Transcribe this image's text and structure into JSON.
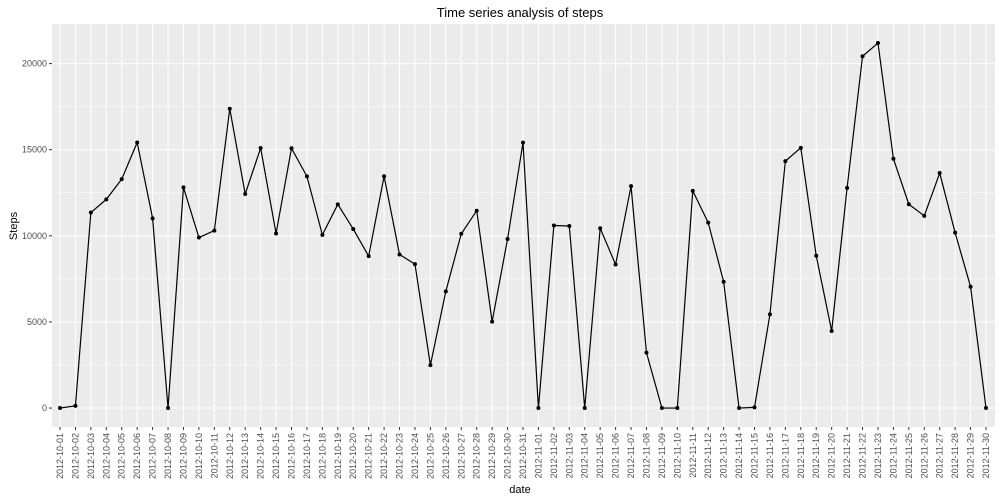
{
  "chart_data": {
    "type": "line",
    "title": "Time series analysis of steps",
    "xlabel": "date",
    "ylabel": "Steps",
    "ylim": [
      -1100,
      22300
    ],
    "yticks": [
      0,
      5000,
      10000,
      15000,
      20000
    ],
    "grid": true,
    "colors": {
      "panel": "#ebebeb",
      "grid": "#ffffff",
      "line": "#000000",
      "point": "#000000"
    },
    "series": [
      {
        "x": [
          "2012-10-01",
          "2012-10-02",
          "2012-10-03",
          "2012-10-04",
          "2012-10-05",
          "2012-10-06",
          "2012-10-07",
          "2012-10-08",
          "2012-10-09",
          "2012-10-10",
          "2012-10-11",
          "2012-10-12",
          "2012-10-13",
          "2012-10-14",
          "2012-10-15",
          "2012-10-16",
          "2012-10-17",
          "2012-10-18",
          "2012-10-19",
          "2012-10-20",
          "2012-10-21",
          "2012-10-22",
          "2012-10-23",
          "2012-10-24",
          "2012-10-25",
          "2012-10-26",
          "2012-10-27",
          "2012-10-28",
          "2012-10-29",
          "2012-10-30",
          "2012-10-31",
          "2012-11-01",
          "2012-11-02",
          "2012-11-03",
          "2012-11-04",
          "2012-11-05",
          "2012-11-06",
          "2012-11-07",
          "2012-11-08",
          "2012-11-09",
          "2012-11-10",
          "2012-11-11",
          "2012-11-12",
          "2012-11-13",
          "2012-11-14",
          "2012-11-15",
          "2012-11-16",
          "2012-11-17",
          "2012-11-18",
          "2012-11-19",
          "2012-11-20",
          "2012-11-21",
          "2012-11-22",
          "2012-11-23",
          "2012-11-24",
          "2012-11-25",
          "2012-11-26",
          "2012-11-27",
          "2012-11-28",
          "2012-11-29",
          "2012-11-30"
        ],
        "values": [
          0,
          126,
          11352,
          12116,
          13294,
          15420,
          11015,
          0,
          12811,
          9900,
          10304,
          17382,
          12426,
          15098,
          10139,
          15084,
          13452,
          10056,
          11829,
          10395,
          8821,
          13460,
          8918,
          8355,
          2492,
          6778,
          10119,
          11458,
          5018,
          9819,
          15414,
          0,
          10600,
          10571,
          0,
          10439,
          8334,
          12883,
          3219,
          0,
          0,
          12608,
          10765,
          7336,
          0,
          41,
          5441,
          14339,
          15110,
          8841,
          4472,
          12787,
          20427,
          21194,
          14478,
          11834,
          11162,
          13646,
          10183,
          7047,
          0
        ]
      }
    ]
  }
}
